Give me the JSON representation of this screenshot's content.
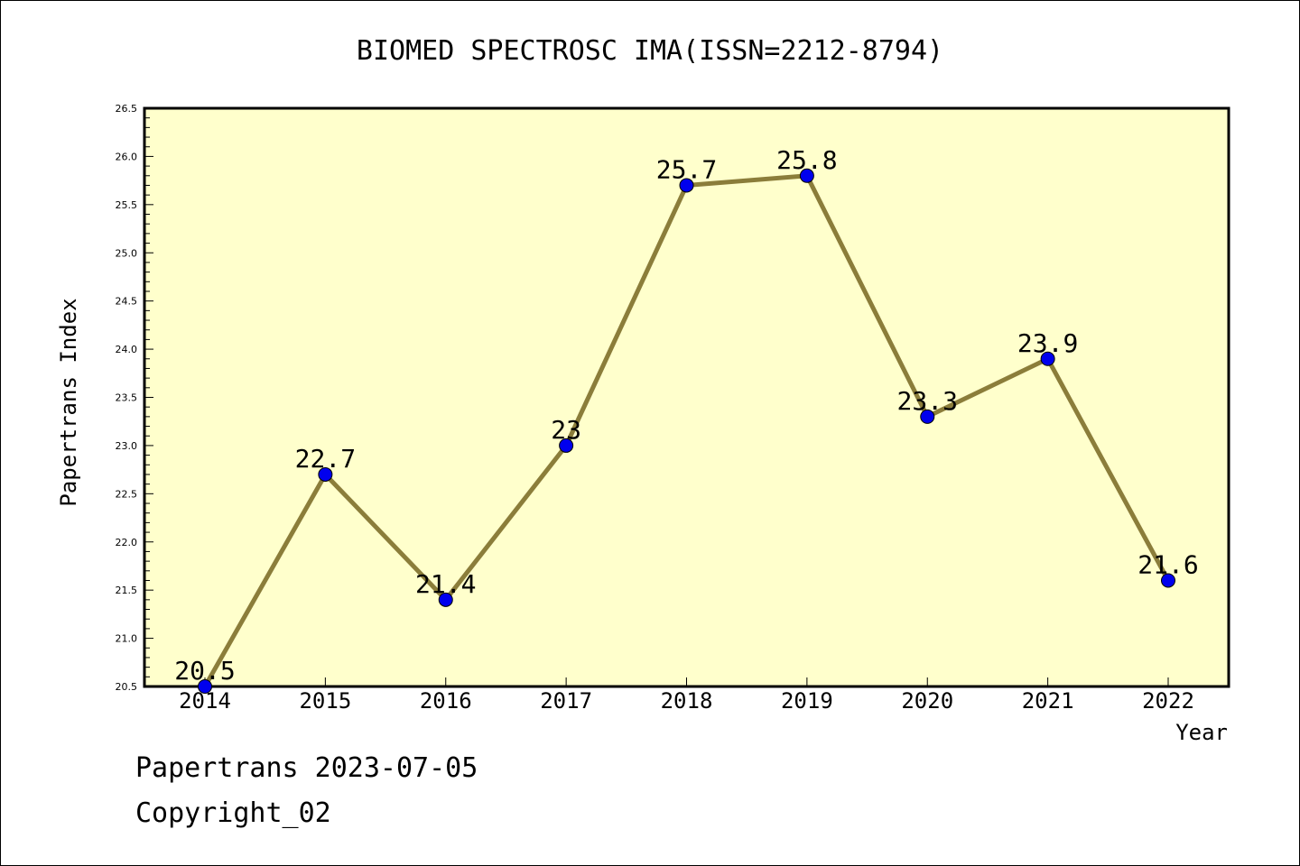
{
  "chart_data": {
    "type": "line",
    "title": "BIOMED SPECTROSC IMA(ISSN=2212-8794)",
    "xlabel": "Year",
    "ylabel": "Papertrans Index",
    "categories": [
      "2014",
      "2015",
      "2016",
      "2017",
      "2018",
      "2019",
      "2020",
      "2021",
      "2022"
    ],
    "values": [
      20.5,
      22.7,
      21.4,
      23,
      25.7,
      25.8,
      23.3,
      23.9,
      21.6
    ],
    "data_labels": [
      "20.5",
      "22.7",
      "21.4",
      "23",
      "25.7",
      "25.8",
      "23.3",
      "23.9",
      "21.6"
    ],
    "ylim": [
      20.5,
      26.5
    ],
    "yticks": [
      "20.5",
      "21.0",
      "21.5",
      "22.0",
      "22.5",
      "23.0",
      "23.5",
      "24.0",
      "24.5",
      "25.0",
      "25.5",
      "26.0",
      "26.5"
    ],
    "grid": false,
    "legend": "none",
    "colors": {
      "plot_background": "#ffffcc",
      "line": "#8b7d3a",
      "marker": "#0000ee"
    }
  },
  "footer": {
    "source": "Papertrans 2023-07-05",
    "copyright": "Copyright_02"
  }
}
